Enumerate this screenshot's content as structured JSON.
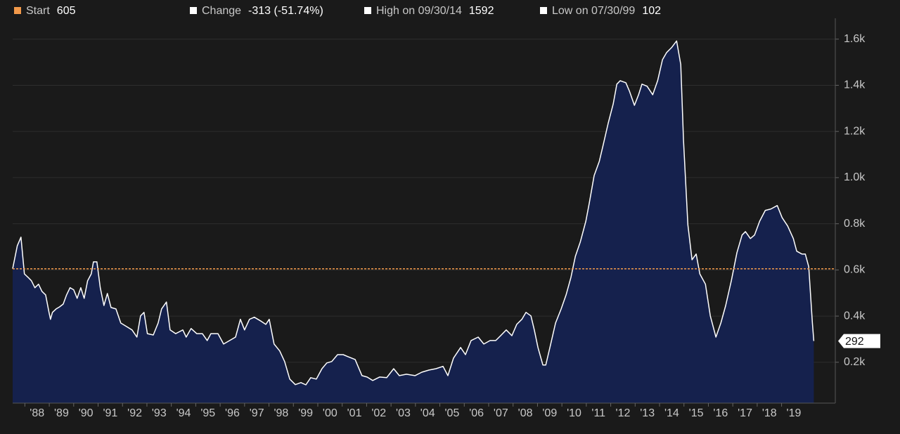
{
  "chart_data": {
    "type": "area",
    "stats": [
      {
        "label": "Start",
        "value": 605,
        "color": "#f2994a"
      },
      {
        "label": "Change",
        "value": "-313 (-51.74%)",
        "color": "#ffffff"
      },
      {
        "label": "High on 09/30/14",
        "value": 1592,
        "color": "#ffffff"
      },
      {
        "label": "Low on 07/30/99",
        "value": 102,
        "color": "#ffffff"
      }
    ],
    "reference_line": {
      "stat": 0,
      "color": "#f2994a"
    },
    "line_color": "#ffffff",
    "fill_color": "#15214d",
    "x": [
      1987.5,
      1987.69,
      1987.84,
      1987.98,
      1988.13,
      1988.27,
      1988.41,
      1988.56,
      1988.7,
      1988.85,
      1988.99,
      1989.05,
      1989.13,
      1989.28,
      1989.42,
      1989.57,
      1989.71,
      1989.85,
      1990.0,
      1990.14,
      1990.29,
      1990.43,
      1990.57,
      1990.72,
      1990.81,
      1990.95,
      1991.09,
      1991.24,
      1991.38,
      1991.53,
      1991.73,
      1991.93,
      1992.16,
      1992.39,
      1992.59,
      1992.74,
      1992.88,
      1993.02,
      1993.26,
      1993.46,
      1993.6,
      1993.8,
      1993.95,
      1994.18,
      1994.47,
      1994.61,
      1994.81,
      1995.04,
      1995.27,
      1995.47,
      1995.62,
      1995.91,
      1996.14,
      1996.34,
      1996.63,
      1996.83,
      1997.0,
      1997.2,
      1997.4,
      1997.69,
      1997.87,
      1998.01,
      1998.21,
      1998.44,
      1998.64,
      1998.85,
      1999.08,
      1999.31,
      1999.51,
      1999.71,
      1999.94,
      2000.17,
      2000.37,
      2000.57,
      2000.81,
      2001.04,
      2001.24,
      2001.53,
      2001.81,
      2002.02,
      2002.25,
      2002.53,
      2002.82,
      2003.11,
      2003.34,
      2003.63,
      2003.98,
      2004.26,
      2004.55,
      2004.84,
      2005.13,
      2005.33,
      2005.56,
      2005.85,
      2006.05,
      2006.28,
      2006.57,
      2006.8,
      2007.06,
      2007.29,
      2007.49,
      2007.72,
      2007.95,
      2008.15,
      2008.36,
      2008.53,
      2008.73,
      2008.87,
      2009.02,
      2009.22,
      2009.34,
      2009.51,
      2009.74,
      2009.97,
      2010.17,
      2010.37,
      2010.55,
      2010.75,
      2010.98,
      2011.12,
      2011.32,
      2011.53,
      2011.7,
      2011.9,
      2012.1,
      2012.25,
      2012.39,
      2012.62,
      2012.77,
      2012.97,
      2013.14,
      2013.28,
      2013.49,
      2013.72,
      2013.92,
      2014.12,
      2014.29,
      2014.49,
      2014.7,
      2014.87,
      2014.98,
      2015.16,
      2015.33,
      2015.5,
      2015.65,
      2015.88,
      2016.08,
      2016.31,
      2016.51,
      2016.71,
      2016.94,
      2017.17,
      2017.38,
      2017.52,
      2017.72,
      2017.89,
      2018.1,
      2018.33,
      2018.56,
      2018.82,
      2019.02,
      2019.25,
      2019.48,
      2019.62,
      2019.83,
      2019.97,
      2020.11,
      2020.26,
      2020.32
    ],
    "values": [
      605,
      705,
      742,
      583,
      568,
      553,
      523,
      538,
      507,
      492,
      416,
      386,
      416,
      431,
      440,
      452,
      492,
      523,
      514,
      477,
      523,
      477,
      553,
      583,
      635,
      635,
      523,
      446,
      498,
      437,
      431,
      370,
      355,
      340,
      309,
      401,
      416,
      324,
      318,
      370,
      431,
      461,
      340,
      324,
      340,
      309,
      346,
      324,
      324,
      294,
      324,
      324,
      279,
      291,
      309,
      386,
      340,
      386,
      395,
      377,
      364,
      386,
      279,
      249,
      203,
      127,
      103,
      112,
      102,
      133,
      127,
      172,
      197,
      203,
      233,
      233,
      224,
      212,
      142,
      136,
      121,
      136,
      133,
      172,
      142,
      148,
      142,
      157,
      166,
      172,
      182,
      142,
      218,
      264,
      233,
      294,
      309,
      279,
      294,
      294,
      315,
      340,
      315,
      364,
      386,
      416,
      401,
      340,
      264,
      188,
      188,
      264,
      370,
      431,
      492,
      568,
      659,
      720,
      811,
      888,
      1009,
      1070,
      1146,
      1237,
      1319,
      1405,
      1420,
      1411,
      1374,
      1313,
      1359,
      1405,
      1396,
      1359,
      1420,
      1511,
      1542,
      1563,
      1592,
      1490,
      1161,
      796,
      644,
      669,
      583,
      538,
      401,
      309,
      370,
      446,
      553,
      675,
      751,
      766,
      736,
      751,
      811,
      858,
      864,
      879,
      827,
      790,
      736,
      681,
      669,
      669,
      614,
      370,
      292
    ],
    "xlim": [
      1987.5,
      2021.2
    ],
    "xticks": [
      {
        "value": 1988,
        "label": "'88"
      },
      {
        "value": 1989,
        "label": "'89"
      },
      {
        "value": 1990,
        "label": "'90"
      },
      {
        "value": 1991,
        "label": "'91"
      },
      {
        "value": 1992,
        "label": "'92"
      },
      {
        "value": 1993,
        "label": "'93"
      },
      {
        "value": 1994,
        "label": "'94"
      },
      {
        "value": 1995,
        "label": "'95"
      },
      {
        "value": 1996,
        "label": "'96"
      },
      {
        "value": 1997,
        "label": "'97"
      },
      {
        "value": 1998,
        "label": "'98"
      },
      {
        "value": 1999,
        "label": "'99"
      },
      {
        "value": 2000,
        "label": "'00"
      },
      {
        "value": 2001,
        "label": "'01"
      },
      {
        "value": 2002,
        "label": "'02"
      },
      {
        "value": 2003,
        "label": "'03"
      },
      {
        "value": 2004,
        "label": "'04"
      },
      {
        "value": 2005,
        "label": "'05"
      },
      {
        "value": 2006,
        "label": "'06"
      },
      {
        "value": 2007,
        "label": "'07"
      },
      {
        "value": 2008,
        "label": "'08"
      },
      {
        "value": 2009,
        "label": "'09"
      },
      {
        "value": 2010,
        "label": "'10"
      },
      {
        "value": 2011,
        "label": "'11"
      },
      {
        "value": 2012,
        "label": "'12"
      },
      {
        "value": 2013,
        "label": "'13"
      },
      {
        "value": 2014,
        "label": "'14"
      },
      {
        "value": 2015,
        "label": "'15"
      },
      {
        "value": 2016,
        "label": "'16"
      },
      {
        "value": 2017,
        "label": "'17"
      },
      {
        "value": 2018,
        "label": "'18"
      },
      {
        "value": 2019,
        "label": "'19"
      }
    ],
    "ylim": [
      23,
      1660
    ],
    "yticks": [
      {
        "value": 200,
        "label": "0.2k"
      },
      {
        "value": 400,
        "label": "0.4k"
      },
      {
        "value": 600,
        "label": "0.6k"
      },
      {
        "value": 800,
        "label": "0.8k"
      },
      {
        "value": 1000,
        "label": "1.0k"
      },
      {
        "value": 1200,
        "label": "1.2k"
      },
      {
        "value": 1400,
        "label": "1.4k"
      },
      {
        "value": 1600,
        "label": "1.6k"
      }
    ],
    "grid": true
  }
}
